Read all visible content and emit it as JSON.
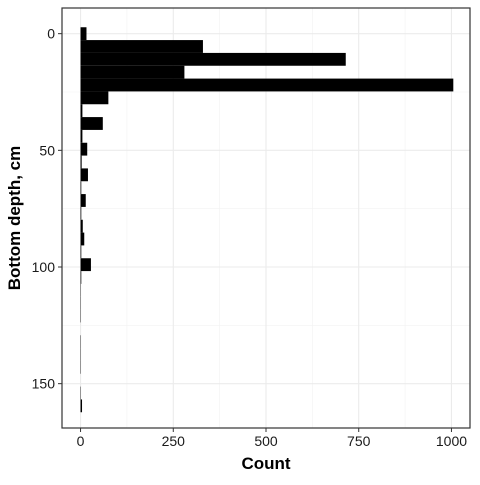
{
  "chart_data": {
    "type": "histogram",
    "orientation": "horizontal",
    "xlabel": "Count",
    "ylabel": "Bottom depth, cm",
    "bins": [
      -2.75,
      2.75,
      8.25,
      13.75,
      19.25,
      24.75,
      30.25,
      35.75,
      41.25,
      46.75,
      52.25,
      57.75,
      63.25,
      68.75,
      74.25,
      79.75,
      85.25,
      90.75,
      96.25,
      101.75,
      107.25,
      112.75,
      118.25,
      123.75,
      129.25,
      134.75,
      140.25,
      145.75,
      151.25,
      156.75,
      162.25
    ],
    "values": [
      16,
      330,
      715,
      280,
      1005,
      75,
      5,
      60,
      5,
      18,
      3,
      20,
      2,
      14,
      2,
      6,
      10,
      2,
      28,
      2,
      1,
      1,
      1,
      0,
      1,
      1,
      1,
      0,
      1,
      4
    ],
    "color": "#000000",
    "xlim": [
      -50,
      1050
    ],
    "xticks": [
      0,
      250,
      500,
      750,
      1000
    ],
    "xminor": [
      125,
      375,
      625,
      875
    ],
    "ylim": [
      -11,
      169
    ],
    "yticks": [
      0,
      50,
      100,
      150
    ],
    "yminor": [
      25,
      75,
      125
    ],
    "y_reversed": true,
    "grid": true
  }
}
